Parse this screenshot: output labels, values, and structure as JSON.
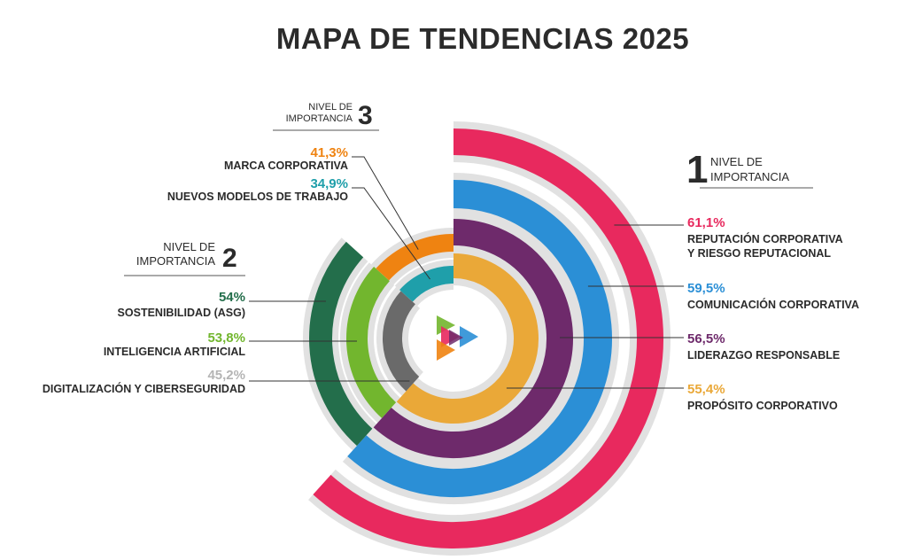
{
  "title": "MAPA DE TENDENCIAS 2025",
  "levels": {
    "l1": {
      "prefix": "NIVEL DE",
      "suffix": "IMPORTANCIA",
      "number": "1"
    },
    "l2": {
      "prefix": "NIVEL DE",
      "suffix": "IMPORTANCIA",
      "number": "2"
    },
    "l3": {
      "prefix": "NIVEL DE",
      "suffix": "IMPORTANCIA",
      "number": "3"
    }
  },
  "track_color": "#e1e1e1",
  "chart_data": {
    "type": "radial-bar",
    "title": "MAPA DE TENDENCIAS 2025",
    "groups": [
      {
        "level": "1",
        "items": [
          {
            "label_lines": [
              "REPUTACIÓN CORPORATIVA",
              "Y RIESGO REPUTACIONAL"
            ],
            "value": 61.1,
            "value_text": "61,1%",
            "color": "#e8295e"
          },
          {
            "label_lines": [
              "COMUNICACIÓN CORPORATIVA"
            ],
            "value": 59.5,
            "value_text": "59,5%",
            "color": "#2b8fd6"
          },
          {
            "label_lines": [
              "LIDERAZGO RESPONSABLE"
            ],
            "value": 56.5,
            "value_text": "56,5%",
            "color": "#6e2a6b"
          },
          {
            "label_lines": [
              "PROPÓSITO CORPORATIVO"
            ],
            "value": 55.4,
            "value_text": "55,4%",
            "color": "#eaa838"
          }
        ]
      },
      {
        "level": "2",
        "items": [
          {
            "label_lines": [
              "SOSTENIBILIDAD (ASG)"
            ],
            "value": 54,
            "value_text": "54%",
            "color": "#236e4b"
          },
          {
            "label_lines": [
              "INTELIGENCIA ARTIFICIAL"
            ],
            "value": 53.8,
            "value_text": "53,8%",
            "color": "#72b62e"
          },
          {
            "label_lines": [
              "DIGITALIZACIÓN Y CIBERSEGURIDAD"
            ],
            "value": 45.2,
            "value_text": "45,2%",
            "color": "#6a6a6a",
            "value_color": "#b4b4b4"
          }
        ]
      },
      {
        "level": "3",
        "items": [
          {
            "label_lines": [
              "MARCA CORPORATIVA"
            ],
            "value": 41.3,
            "value_text": "41,3%",
            "color": "#ef8311"
          },
          {
            "label_lines": [
              "NUEVOS MODELOS DE TRABAJO"
            ],
            "value": 34.9,
            "value_text": "34,9%",
            "color": "#1f9faa"
          }
        ]
      }
    ]
  }
}
